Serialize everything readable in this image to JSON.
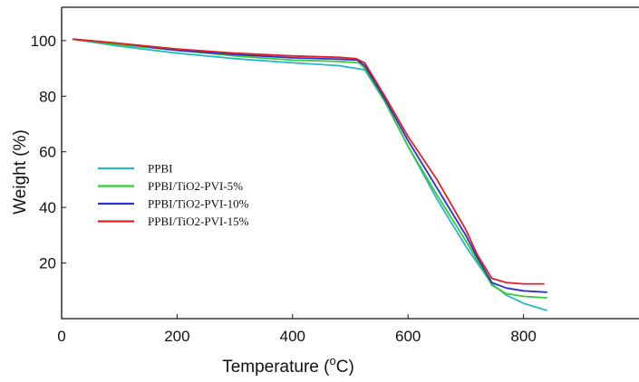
{
  "chart_data": {
    "type": "line",
    "xlabel": "Temperature (",
    "xlabel_super": "o",
    "xlabel_end": "C)",
    "ylabel": "Weight  (%)",
    "xlim": [
      0,
      1000
    ],
    "ylim": [
      0,
      112
    ],
    "xticks": [
      "0",
      "200",
      "400",
      "600",
      "800"
    ],
    "xtick_values": [
      0,
      200,
      400,
      600,
      800
    ],
    "yticks": [
      "20",
      "40",
      "60",
      "80",
      "100"
    ],
    "ytick_values": [
      20,
      40,
      60,
      80,
      100
    ],
    "grid": false,
    "legend_position": "center-left",
    "series": [
      {
        "name": "PPBI",
        "color": "#29b6c8",
        "x": [
          20,
          100,
          200,
          300,
          400,
          480,
          525,
          560,
          600,
          650,
          700,
          720,
          745,
          770,
          800,
          840
        ],
        "y": [
          100.5,
          98.0,
          95.5,
          93.5,
          92.0,
          91.0,
          89.5,
          78.0,
          62.0,
          43.0,
          26.0,
          20.0,
          12.5,
          8.5,
          5.5,
          3.0
        ]
      },
      {
        "name": "PPBI/TiO2-PVI-5%",
        "color": "#33cc33",
        "x": [
          20,
          100,
          200,
          300,
          400,
          480,
          515,
          525,
          560,
          600,
          650,
          700,
          720,
          745,
          770,
          800,
          840
        ],
        "y": [
          100.5,
          98.5,
          96.5,
          94.5,
          93.0,
          92.5,
          92.0,
          90.0,
          78.0,
          62.0,
          44.5,
          28.0,
          21.0,
          12.0,
          9.0,
          8.0,
          7.5
        ]
      },
      {
        "name": "PPBI/TiO2-PVI-10%",
        "color": "#2f2fd0",
        "x": [
          20,
          100,
          200,
          300,
          400,
          480,
          512,
          525,
          560,
          600,
          650,
          700,
          720,
          745,
          770,
          800,
          840
        ],
        "y": [
          100.5,
          99.0,
          96.5,
          95.0,
          93.8,
          93.3,
          93.0,
          91.0,
          79.0,
          64.0,
          47.0,
          30.0,
          22.0,
          13.0,
          11.0,
          10.0,
          9.5
        ]
      },
      {
        "name": "PPBI/TiO2-PVI-15%",
        "color": "#e02222",
        "x": [
          20,
          100,
          200,
          300,
          400,
          480,
          510,
          525,
          560,
          600,
          650,
          700,
          720,
          745,
          770,
          800,
          835
        ],
        "y": [
          100.5,
          99.0,
          97.0,
          95.5,
          94.5,
          94.0,
          93.5,
          92.0,
          80.0,
          65.5,
          50.0,
          32.0,
          23.0,
          14.5,
          13.0,
          12.5,
          12.5
        ]
      }
    ]
  }
}
